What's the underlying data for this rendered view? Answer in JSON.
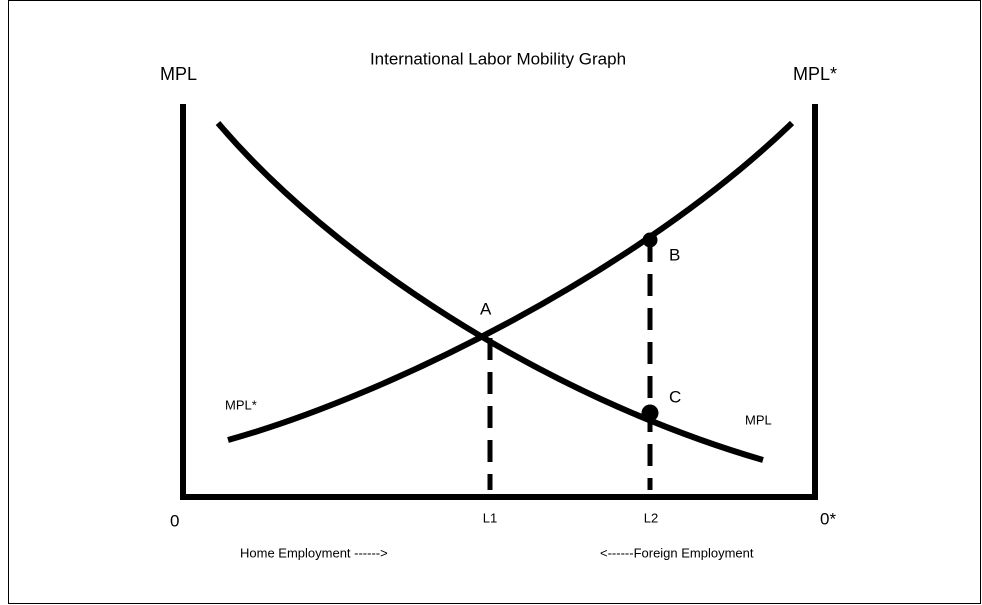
{
  "title": "International Labor Mobility Graph",
  "axes": {
    "left_label": "MPL",
    "right_label": "MPL*",
    "left_origin": "0",
    "right_origin": "0*",
    "home_direction": "Home Employment ------>",
    "foreign_direction": "<------Foreign Employment"
  },
  "points": {
    "a": "A",
    "b": "B",
    "c": "C"
  },
  "employment": {
    "l1": "L1",
    "l2": "L2"
  },
  "curves": {
    "foreign": "MPL*",
    "home": "MPL"
  }
}
